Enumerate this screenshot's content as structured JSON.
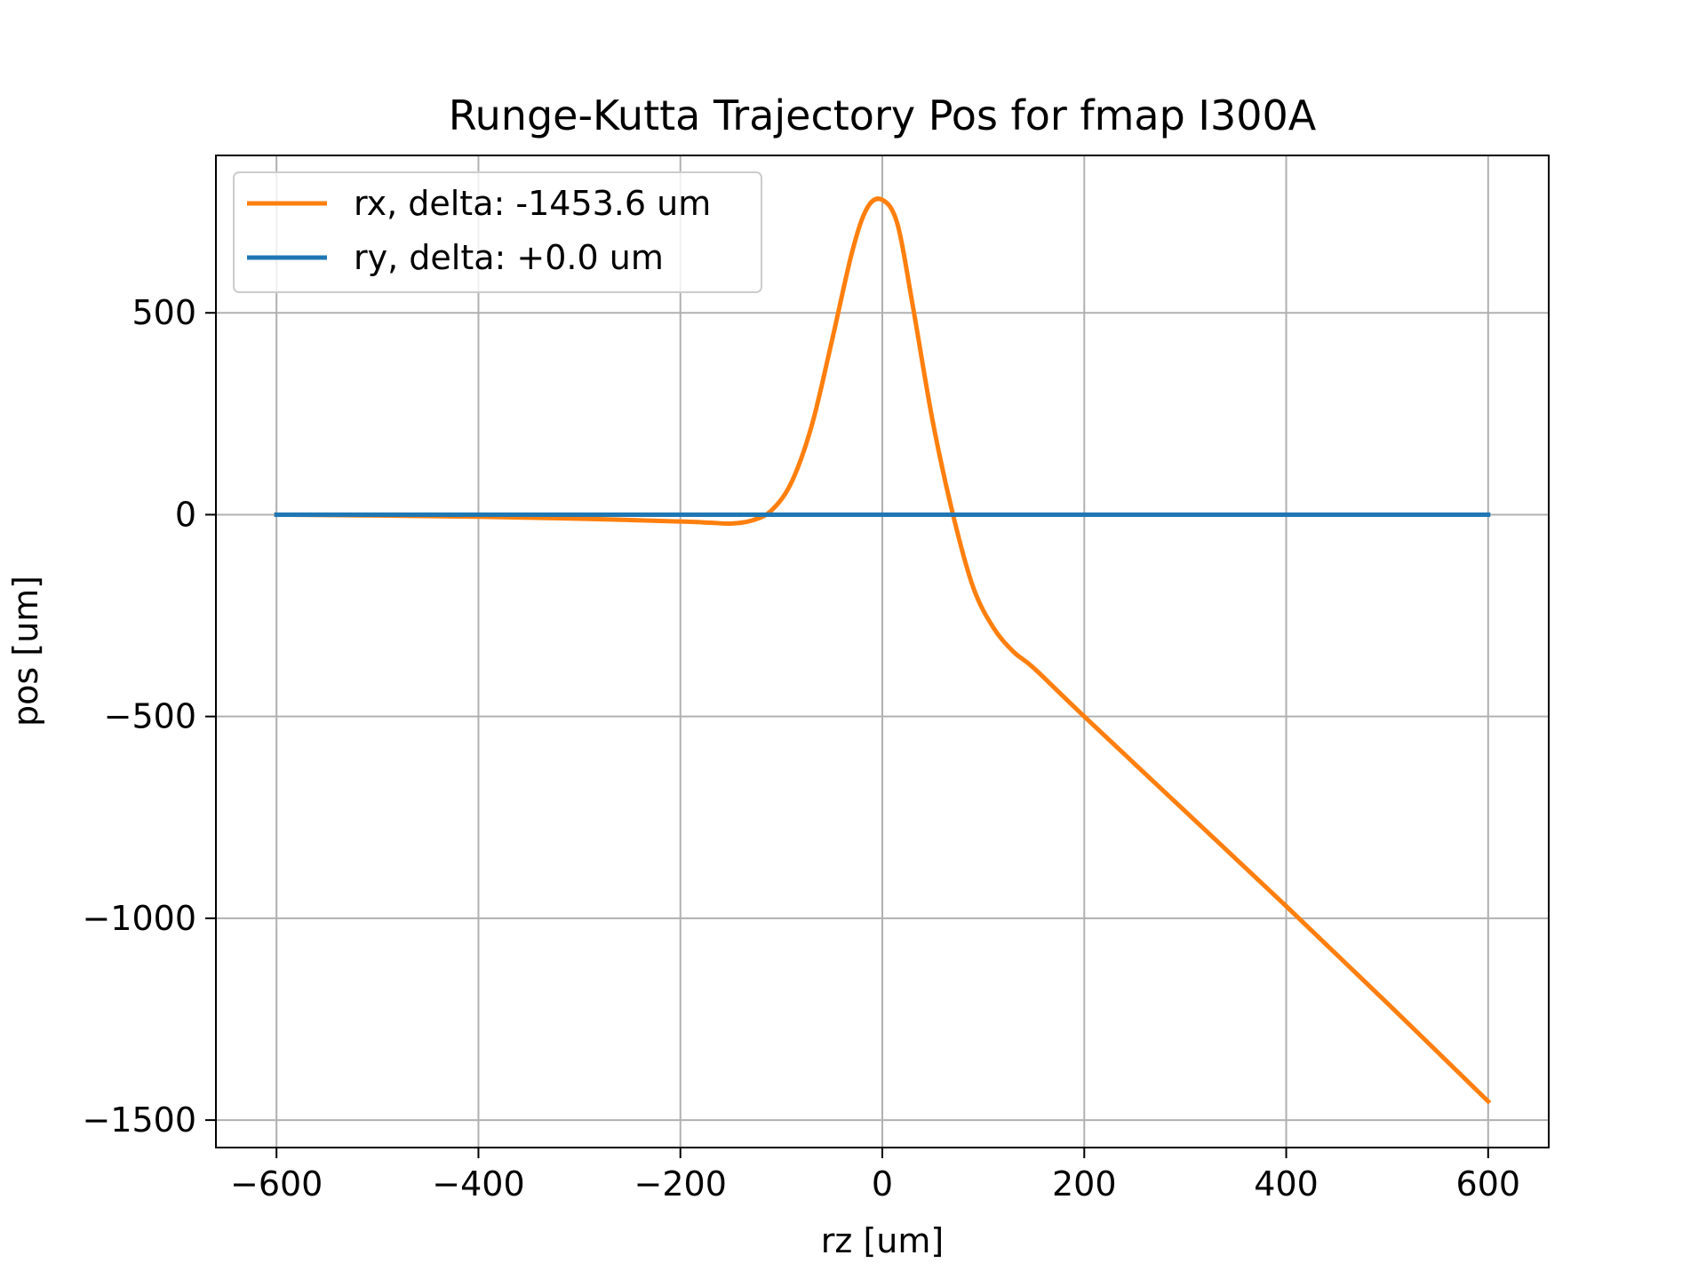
{
  "chart_data": {
    "type": "line",
    "title": "Runge-Kutta Trajectory Pos for fmap I300A",
    "xlabel": "rz [um]",
    "ylabel": "pos [um]",
    "xlim": [
      -660,
      660
    ],
    "ylim": [
      -1568,
      890
    ],
    "xticks": [
      -600,
      -400,
      -200,
      0,
      200,
      400,
      600
    ],
    "yticks": [
      -1500,
      -1000,
      -500,
      0,
      500
    ],
    "xtick_labels": [
      "−600",
      "−400",
      "−200",
      "0",
      "200",
      "400",
      "600"
    ],
    "ytick_labels": [
      "−1500",
      "−1000",
      "−500",
      "0",
      "500"
    ],
    "grid": true,
    "legend_position": "upper-left",
    "series": [
      {
        "name": "rx, delta: -1453.6 um",
        "color": "#ff7f0e",
        "x": [
          -600,
          -500,
          -400,
          -300,
          -200,
          -170,
          -150,
          -130,
          -110,
          -90,
          -70,
          -50,
          -30,
          -15,
          0,
          15,
          30,
          50,
          70,
          90,
          110,
          130,
          150,
          200,
          300,
          400,
          500,
          600
        ],
        "y": [
          0,
          -2,
          -5,
          -10,
          -17,
          -20,
          -22,
          -15,
          10,
          80,
          220,
          430,
          650,
          760,
          780,
          720,
          520,
          230,
          0,
          -180,
          -280,
          -340,
          -380,
          -500,
          -735,
          -970,
          -1210,
          -1453.6
        ]
      },
      {
        "name": "ry, delta: +0.0 um",
        "color": "#1f77b4",
        "x": [
          -600,
          600
        ],
        "y": [
          0,
          0
        ]
      }
    ]
  }
}
